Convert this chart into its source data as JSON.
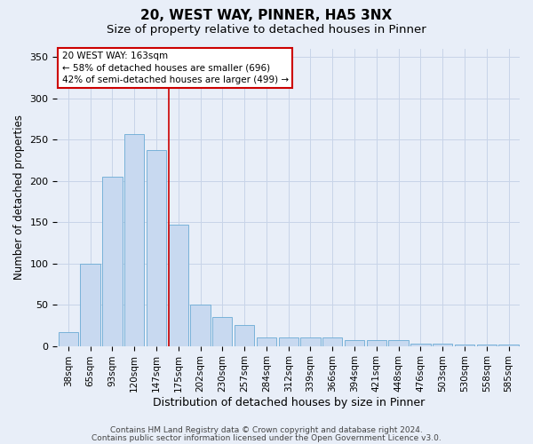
{
  "title1": "20, WEST WAY, PINNER, HA5 3NX",
  "title2": "Size of property relative to detached houses in Pinner",
  "xlabel": "Distribution of detached houses by size in Pinner",
  "ylabel": "Number of detached properties",
  "categories": [
    "38sqm",
    "65sqm",
    "93sqm",
    "120sqm",
    "147sqm",
    "175sqm",
    "202sqm",
    "230sqm",
    "257sqm",
    "284sqm",
    "312sqm",
    "339sqm",
    "366sqm",
    "394sqm",
    "421sqm",
    "448sqm",
    "476sqm",
    "503sqm",
    "530sqm",
    "558sqm",
    "585sqm"
  ],
  "values": [
    17,
    100,
    205,
    257,
    237,
    147,
    50,
    35,
    25,
    10,
    10,
    10,
    10,
    7,
    7,
    7,
    3,
    3,
    2,
    2,
    2
  ],
  "bar_color": "#c8d9f0",
  "bar_edge_color": "#6aaad4",
  "grid_color": "#c8d4e8",
  "bg_color": "#e8eef8",
  "annotation_box_text": "20 WEST WAY: 163sqm\n← 58% of detached houses are smaller (696)\n42% of semi-detached houses are larger (499) →",
  "vline_color": "#cc0000",
  "vline_x": 4.58,
  "ylim": [
    0,
    360
  ],
  "yticks": [
    0,
    50,
    100,
    150,
    200,
    250,
    300,
    350
  ],
  "footer_line1": "Contains HM Land Registry data © Crown copyright and database right 2024.",
  "footer_line2": "Contains public sector information licensed under the Open Government Licence v3.0.",
  "title1_fontsize": 11,
  "title2_fontsize": 9.5,
  "xlabel_fontsize": 9,
  "ylabel_fontsize": 8.5,
  "tick_fontsize": 8,
  "annotation_fontsize": 7.5,
  "footer_fontsize": 6.5
}
